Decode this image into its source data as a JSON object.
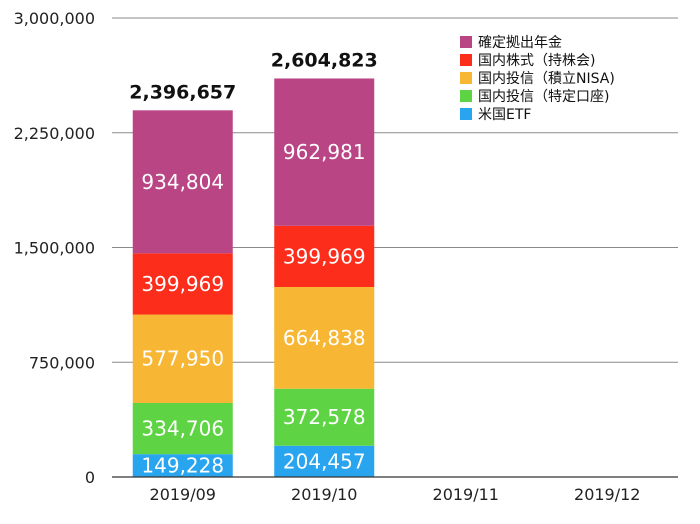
{
  "chart_data": {
    "type": "bar",
    "stacked": true,
    "categories": [
      "2019/09",
      "2019/10",
      "2019/11",
      "2019/12"
    ],
    "series": [
      {
        "name": "米国ETF",
        "color": "#29a4ee",
        "values": [
          149228,
          204457,
          null,
          null
        ]
      },
      {
        "name": "国内投信（特定口座)",
        "color": "#5ed445",
        "values": [
          334706,
          372578,
          null,
          null
        ]
      },
      {
        "name": "国内投信（積立NISA)",
        "color": "#f7b633",
        "values": [
          577950,
          664838,
          null,
          null
        ]
      },
      {
        "name": "国内株式（持株会)",
        "color": "#fc2d1b",
        "values": [
          399969,
          399969,
          null,
          null
        ]
      },
      {
        "name": "確定拠出年金",
        "color": "#b94585",
        "values": [
          934804,
          962981,
          null,
          null
        ]
      }
    ],
    "segment_labels": [
      [
        "149,228",
        "334,706",
        "577,950",
        "399,969",
        "934,804"
      ],
      [
        "204,457",
        "372,578",
        "664,838",
        "399,969",
        "962,981"
      ]
    ],
    "totals": [
      "2,396,657",
      "2,604,823",
      null,
      null
    ],
    "yticks": [
      0,
      750000,
      1500000,
      2250000,
      3000000
    ],
    "ytick_labels": [
      "0",
      "750,000",
      "1,500,000",
      "2,250,000",
      "3,000,000"
    ],
    "ylim": [
      0,
      3000000
    ],
    "grid": true,
    "legend_position": "top-right",
    "legend_order": [
      "確定拠出年金",
      "国内株式（持株会)",
      "国内投信（積立NISA)",
      "国内投信（特定口座)",
      "米国ETF"
    ],
    "title": "",
    "xlabel": "",
    "ylabel": ""
  }
}
